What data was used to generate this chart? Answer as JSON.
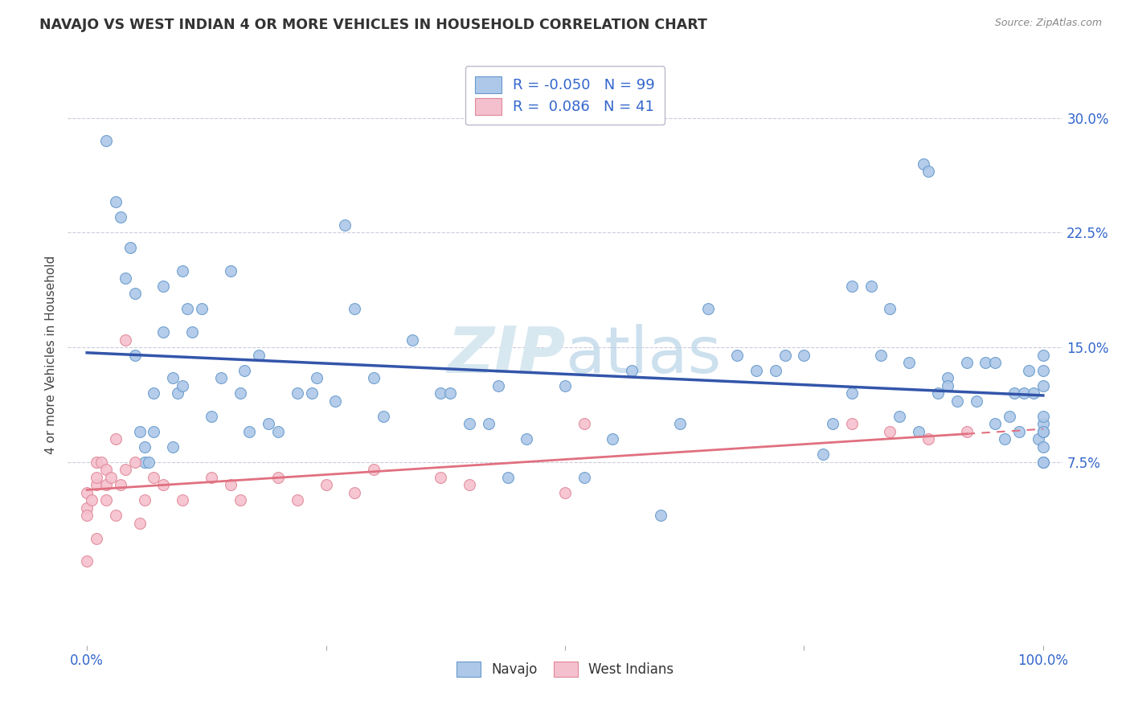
{
  "title": "NAVAJO VS WEST INDIAN 4 OR MORE VEHICLES IN HOUSEHOLD CORRELATION CHART",
  "source": "Source: ZipAtlas.com",
  "ylabel": "4 or more Vehicles in Household",
  "ytick_labels": [
    "30.0%",
    "22.5%",
    "15.0%",
    "7.5%"
  ],
  "ytick_values": [
    0.3,
    0.225,
    0.15,
    0.075
  ],
  "xlim": [
    -0.02,
    1.02
  ],
  "ylim": [
    -0.045,
    0.335
  ],
  "navajo_color": "#adc8e8",
  "navajo_edge_color": "#6699cc",
  "navajo_line_color": "#3355aa",
  "west_indian_color": "#f5c0ce",
  "west_indian_edge_color": "#e08898",
  "west_indian_line_color": "#e07080",
  "watermark_color": "#d8e8f0",
  "legend_color": "#3366cc",
  "navajo_R": -0.05,
  "navajo_N": 99,
  "west_indian_R": 0.086,
  "west_indian_N": 41,
  "navajo_x": [
    0.02,
    0.03,
    0.035,
    0.04,
    0.045,
    0.05,
    0.05,
    0.055,
    0.06,
    0.06,
    0.065,
    0.07,
    0.07,
    0.08,
    0.08,
    0.09,
    0.09,
    0.095,
    0.1,
    0.1,
    0.105,
    0.11,
    0.12,
    0.13,
    0.14,
    0.15,
    0.16,
    0.165,
    0.17,
    0.18,
    0.19,
    0.2,
    0.22,
    0.235,
    0.24,
    0.26,
    0.27,
    0.28,
    0.3,
    0.31,
    0.34,
    0.37,
    0.38,
    0.4,
    0.42,
    0.43,
    0.44,
    0.46,
    0.5,
    0.52,
    0.55,
    0.57,
    0.6,
    0.62,
    0.65,
    0.68,
    0.7,
    0.72,
    0.73,
    0.75,
    0.77,
    0.78,
    0.8,
    0.8,
    0.82,
    0.83,
    0.84,
    0.85,
    0.86,
    0.87,
    0.875,
    0.88,
    0.89,
    0.9,
    0.9,
    0.91,
    0.92,
    0.93,
    0.94,
    0.95,
    0.95,
    0.96,
    0.965,
    0.97,
    0.975,
    0.98,
    0.985,
    0.99,
    0.995,
    1.0,
    1.0,
    1.0,
    1.0,
    1.0,
    1.0,
    1.0,
    1.0,
    1.0,
    1.0
  ],
  "navajo_y": [
    0.285,
    0.245,
    0.235,
    0.195,
    0.215,
    0.185,
    0.145,
    0.095,
    0.085,
    0.075,
    0.075,
    0.12,
    0.095,
    0.19,
    0.16,
    0.13,
    0.085,
    0.12,
    0.125,
    0.2,
    0.175,
    0.16,
    0.175,
    0.105,
    0.13,
    0.2,
    0.12,
    0.135,
    0.095,
    0.145,
    0.1,
    0.095,
    0.12,
    0.12,
    0.13,
    0.115,
    0.23,
    0.175,
    0.13,
    0.105,
    0.155,
    0.12,
    0.12,
    0.1,
    0.1,
    0.125,
    0.065,
    0.09,
    0.125,
    0.065,
    0.09,
    0.135,
    0.04,
    0.1,
    0.175,
    0.145,
    0.135,
    0.135,
    0.145,
    0.145,
    0.08,
    0.1,
    0.12,
    0.19,
    0.19,
    0.145,
    0.175,
    0.105,
    0.14,
    0.095,
    0.27,
    0.265,
    0.12,
    0.13,
    0.125,
    0.115,
    0.14,
    0.115,
    0.14,
    0.14,
    0.1,
    0.09,
    0.105,
    0.12,
    0.095,
    0.12,
    0.135,
    0.12,
    0.09,
    0.085,
    0.075,
    0.075,
    0.095,
    0.1,
    0.105,
    0.135,
    0.145,
    0.095,
    0.125
  ],
  "west_indian_x": [
    0.0,
    0.0,
    0.0,
    0.0,
    0.005,
    0.01,
    0.01,
    0.01,
    0.01,
    0.015,
    0.02,
    0.02,
    0.02,
    0.025,
    0.03,
    0.03,
    0.035,
    0.04,
    0.04,
    0.05,
    0.055,
    0.06,
    0.07,
    0.08,
    0.1,
    0.13,
    0.15,
    0.16,
    0.2,
    0.22,
    0.25,
    0.28,
    0.3,
    0.37,
    0.4,
    0.5,
    0.52,
    0.8,
    0.84,
    0.88,
    0.92
  ],
  "west_indian_y": [
    0.045,
    0.055,
    0.04,
    0.01,
    0.05,
    0.06,
    0.075,
    0.065,
    0.025,
    0.075,
    0.06,
    0.05,
    0.07,
    0.065,
    0.04,
    0.09,
    0.06,
    0.155,
    0.07,
    0.075,
    0.035,
    0.05,
    0.065,
    0.06,
    0.05,
    0.065,
    0.06,
    0.05,
    0.065,
    0.05,
    0.06,
    0.055,
    0.07,
    0.065,
    0.06,
    0.055,
    0.1,
    0.1,
    0.095,
    0.09,
    0.095
  ]
}
